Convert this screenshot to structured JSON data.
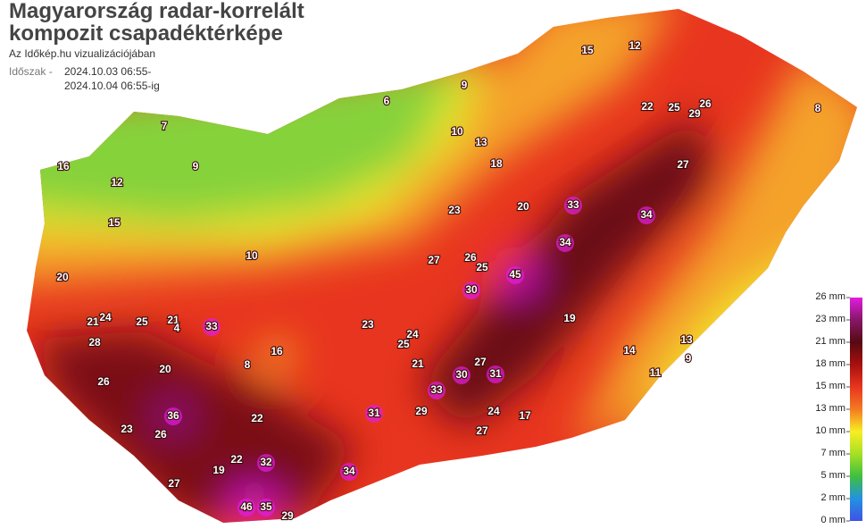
{
  "header": {
    "title_line1": "Magyarország radar-korrelált",
    "title_line2": "kompozit csapadéktérképe",
    "subtitle": "Az Időkép.hu vizualizációjában",
    "period_label": "Időszak -",
    "period_from": "2024.10.03 06:55-",
    "period_to": "2024.10.04 06:55-ig"
  },
  "legend": {
    "ticks": [
      {
        "value": 26,
        "label": "26 mm",
        "color": "#e21ce0"
      },
      {
        "value": 23,
        "label": "23 mm",
        "color": "#861768"
      },
      {
        "value": 21,
        "label": "21 mm",
        "color": "#560a12"
      },
      {
        "value": 18,
        "label": "18 mm",
        "color": "#a8100e"
      },
      {
        "value": 15,
        "label": "15 mm",
        "color": "#e8351f"
      },
      {
        "value": 13,
        "label": "13 mm",
        "color": "#f47a22"
      },
      {
        "value": 10,
        "label": "10 mm",
        "color": "#f8ee22"
      },
      {
        "value": 7,
        "label": "7 mm",
        "color": "#a6e024"
      },
      {
        "value": 5,
        "label": "5 mm",
        "color": "#3fbf3f"
      },
      {
        "value": 2,
        "label": "2 mm",
        "color": "#2392e2"
      },
      {
        "value": 0,
        "label": "0 mm",
        "color": "#3f52e6"
      }
    ]
  },
  "stations": [
    45,
    33,
    36,
    46,
    35,
    34,
    33,
    34,
    34,
    29,
    27,
    26,
    28,
    26,
    24,
    21,
    25,
    21,
    16,
    8,
    4,
    31,
    33,
    30,
    31,
    27,
    27,
    24,
    29,
    22,
    22,
    32,
    29,
    19,
    27,
    26,
    23,
    20,
    23,
    25,
    24,
    21,
    30,
    26,
    27,
    25,
    23,
    20,
    15,
    12,
    8,
    7,
    9,
    10,
    12,
    16,
    20,
    15,
    22,
    25,
    19,
    14,
    13,
    11,
    17,
    9,
    18,
    13,
    10,
    6,
    9
  ]
}
